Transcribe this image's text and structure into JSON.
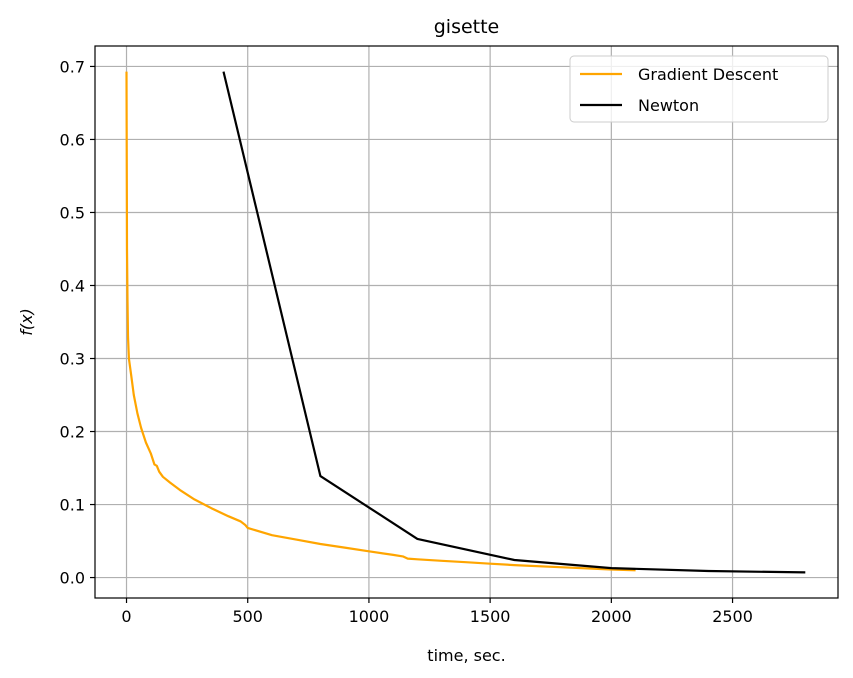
{
  "chart_data": {
    "type": "line",
    "title": "gisette",
    "xlabel": "time, sec.",
    "ylabel": "f(x)",
    "xlim": [
      -130,
      2935
    ],
    "ylim": [
      -0.028,
      0.728
    ],
    "xticks": [
      0,
      500,
      1000,
      1500,
      2000,
      2500
    ],
    "yticks": [
      0.0,
      0.1,
      0.2,
      0.3,
      0.4,
      0.5,
      0.6,
      0.7
    ],
    "ytick_labels": [
      "0.0",
      "0.1",
      "0.2",
      "0.3",
      "0.4",
      "0.5",
      "0.6",
      "0.7"
    ],
    "grid": true,
    "legend_position": "top-right",
    "series": [
      {
        "name": "Gradient Descent",
        "color": "#ffa500",
        "x": [
          0,
          1,
          2,
          4,
          6,
          10,
          20,
          30,
          45,
          60,
          80,
          100,
          115,
          125,
          135,
          150,
          180,
          220,
          280,
          350,
          420,
          470,
          490,
          500,
          600,
          700,
          800,
          900,
          1000,
          1100,
          1140,
          1160,
          1200,
          1300,
          1400,
          1500,
          1600,
          1800,
          2000,
          2100
        ],
        "y": [
          0.693,
          0.55,
          0.45,
          0.38,
          0.33,
          0.3,
          0.275,
          0.25,
          0.225,
          0.205,
          0.185,
          0.17,
          0.155,
          0.153,
          0.145,
          0.138,
          0.13,
          0.12,
          0.107,
          0.095,
          0.084,
          0.077,
          0.072,
          0.068,
          0.058,
          0.052,
          0.046,
          0.041,
          0.036,
          0.031,
          0.029,
          0.026,
          0.025,
          0.023,
          0.021,
          0.019,
          0.017,
          0.014,
          0.011,
          0.01
        ]
      },
      {
        "name": "Newton",
        "color": "#000000",
        "x": [
          400,
          800,
          1200,
          1600,
          2000,
          2400,
          2800
        ],
        "y": [
          0.693,
          0.139,
          0.053,
          0.024,
          0.013,
          0.009,
          0.007
        ]
      }
    ]
  }
}
